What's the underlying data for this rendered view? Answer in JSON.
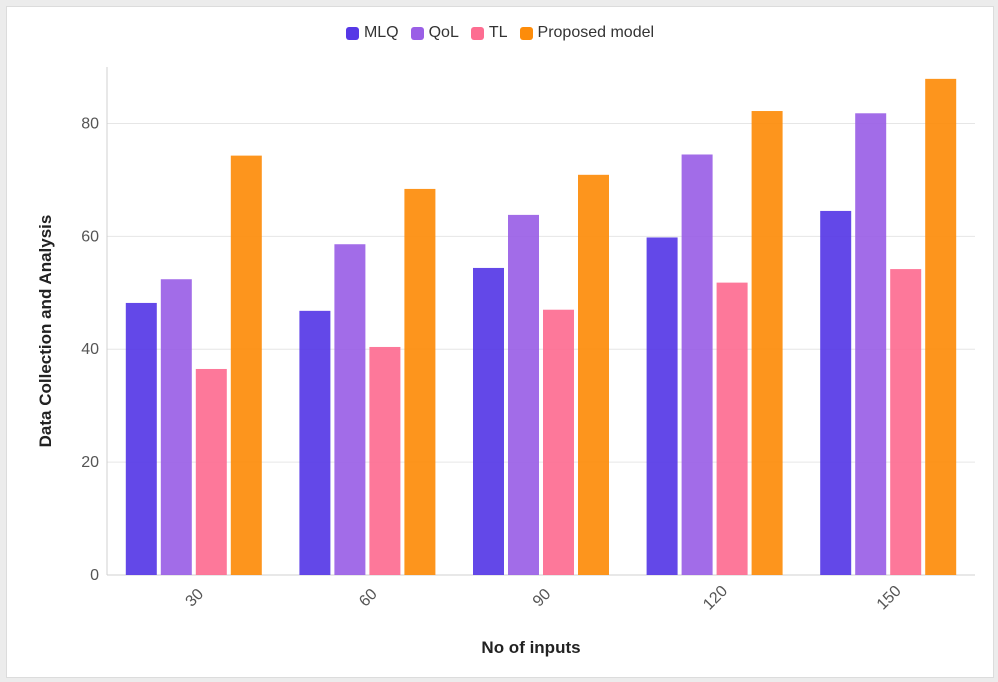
{
  "chart_data": {
    "type": "bar",
    "title": "",
    "xlabel": "No of inputs",
    "ylabel": "Data Collection and Analysis",
    "categories": [
      "30",
      "60",
      "90",
      "120",
      "150"
    ],
    "series": [
      {
        "name": "MLQ",
        "color": "#5638e6",
        "values": [
          48.2,
          46.8,
          54.4,
          59.8,
          64.5
        ]
      },
      {
        "name": "QoL",
        "color": "#9a5fe6",
        "values": [
          52.4,
          58.6,
          63.8,
          74.5,
          81.8
        ]
      },
      {
        "name": "TL",
        "color": "#fd6d91",
        "values": [
          36.5,
          40.4,
          47.0,
          51.8,
          54.2
        ]
      },
      {
        "name": "Proposed model",
        "color": "#fd8c0a",
        "values": [
          74.3,
          68.4,
          70.9,
          82.2,
          87.9
        ]
      }
    ],
    "ylim": [
      0,
      90
    ],
    "yticks": [
      0,
      20,
      40,
      60,
      80
    ],
    "grid": true,
    "legend_position": "top-center"
  }
}
